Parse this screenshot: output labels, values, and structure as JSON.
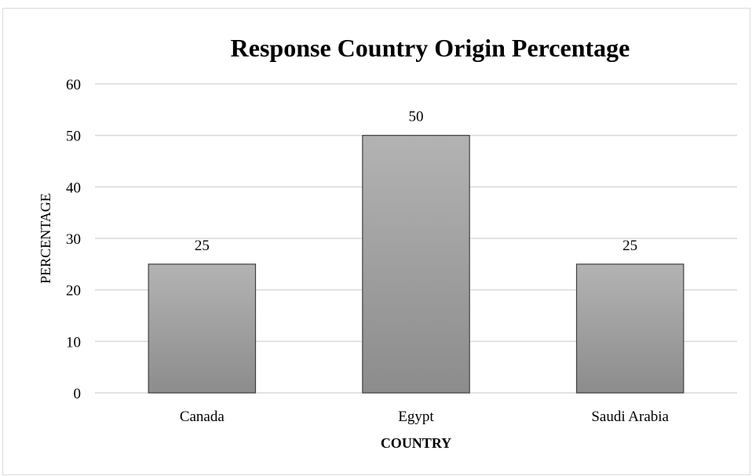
{
  "chart_data": {
    "type": "bar",
    "title": "Response Country Origin Percentage",
    "xlabel": "COUNTRY",
    "ylabel": "PERCENTAGE",
    "categories": [
      "Canada",
      "Egypt",
      "Saudi Arabia"
    ],
    "values": [
      25,
      50,
      25
    ],
    "data_labels": [
      "25",
      "50",
      "25"
    ],
    "ylim": [
      0,
      60
    ],
    "yticks": [
      "0",
      "10",
      "20",
      "30",
      "40",
      "50",
      "60"
    ],
    "grid": true,
    "legend": "none",
    "colors": {
      "bar_top": "#b3b3b3",
      "bar_bottom": "#8c8c8c",
      "bar_stroke": "#404040",
      "grid": "#d9d9d9",
      "text": "#000000"
    }
  }
}
